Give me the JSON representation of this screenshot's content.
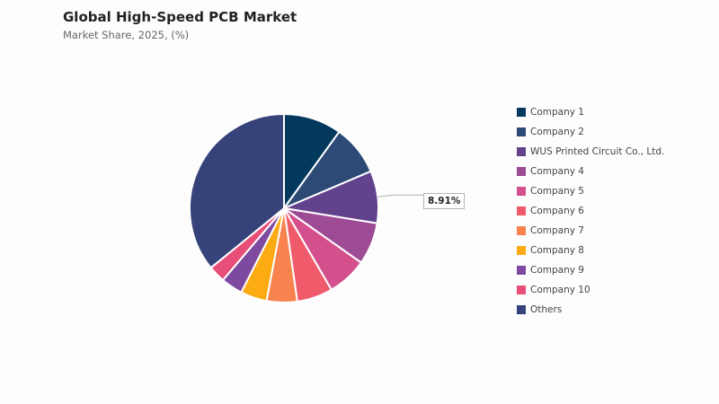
{
  "chart_data": {
    "type": "pie",
    "title": "Global High-Speed PCB Market",
    "subtitle": "Market Share, 2025, (%)",
    "categories": [
      "Company 1",
      "Company 2",
      "WUS Printed Circuit Co., Ltd.",
      "Company 4",
      "Company 5",
      "Company 6",
      "Company 7",
      "Company 8",
      "Company 9",
      "Company 10",
      "Others"
    ],
    "values": [
      9.9,
      8.6,
      8.91,
      7.2,
      6.8,
      6.1,
      5.2,
      4.5,
      3.7,
      2.9,
      35.7
    ],
    "colors": [
      "#04395e",
      "#2c4a75",
      "#62428c",
      "#9e4b96",
      "#d3508d",
      "#f05b6c",
      "#f8834e",
      "#fcab13",
      "#7d4a9f",
      "#e84f78",
      "#35437a"
    ],
    "callout": {
      "label": "8.91%",
      "index": 2
    },
    "legend_position": "right"
  }
}
